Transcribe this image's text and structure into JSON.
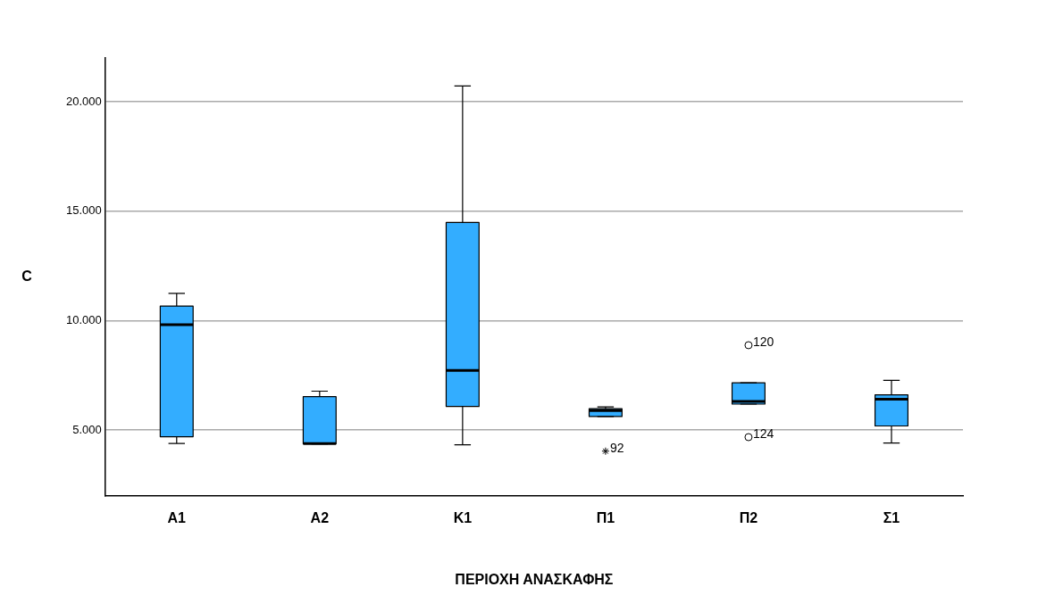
{
  "chart_data": {
    "type": "box",
    "xlabel": "ΠΕΡΙΟΧΗ ΑΝΑΣΚΑΦΗΣ",
    "ylabel": "C",
    "categories": [
      "Α1",
      "Α2",
      "Κ1",
      "Π1",
      "Π2",
      "Σ1"
    ],
    "color": "#33adff",
    "boxes": [
      {
        "low": 4390,
        "q1": 4700,
        "median": 9820,
        "q3": 10670,
        "high": 11250
      },
      {
        "low": 4370,
        "q1": 4380,
        "median": 4390,
        "q3": 6530,
        "high": 6780
      },
      {
        "low": 4330,
        "q1": 6080,
        "median": 7730,
        "q3": 14490,
        "high": 20720
      },
      {
        "low": 5620,
        "q1": 5620,
        "median": 5890,
        "q3": 5980,
        "high": 6060
      },
      {
        "low": 6190,
        "q1": 6190,
        "median": 6310,
        "q3": 7160,
        "high": 7160
      },
      {
        "low": 4410,
        "q1": 5190,
        "median": 6410,
        "q3": 6610,
        "high": 7270
      }
    ],
    "series": [
      {
        "type": "scatter",
        "marker": "cross",
        "color": "#000000",
        "x": [
          "Π1"
        ],
        "values": [
          4040
        ]
      },
      {
        "type": "scatter",
        "marker": "circle",
        "color": "#000000",
        "x": [
          "Π2",
          "Π2"
        ],
        "values": [
          8880,
          4680
        ]
      }
    ],
    "annotations": [
      {
        "text": "92",
        "x": "Π1",
        "y": 4040
      },
      {
        "text": "120",
        "x": "Π2",
        "y": 8880
      },
      {
        "text": "124",
        "x": "Π2",
        "y": 4680
      }
    ],
    "ylim": [
      2000,
      22000
    ],
    "yticks": [
      {
        "value": 5000,
        "label": "5.000"
      },
      {
        "value": 10000,
        "label": "10.000"
      },
      {
        "value": 15000,
        "label": "15.000"
      },
      {
        "value": 20000,
        "label": "20.000"
      }
    ],
    "grid": "y",
    "legend": false
  }
}
